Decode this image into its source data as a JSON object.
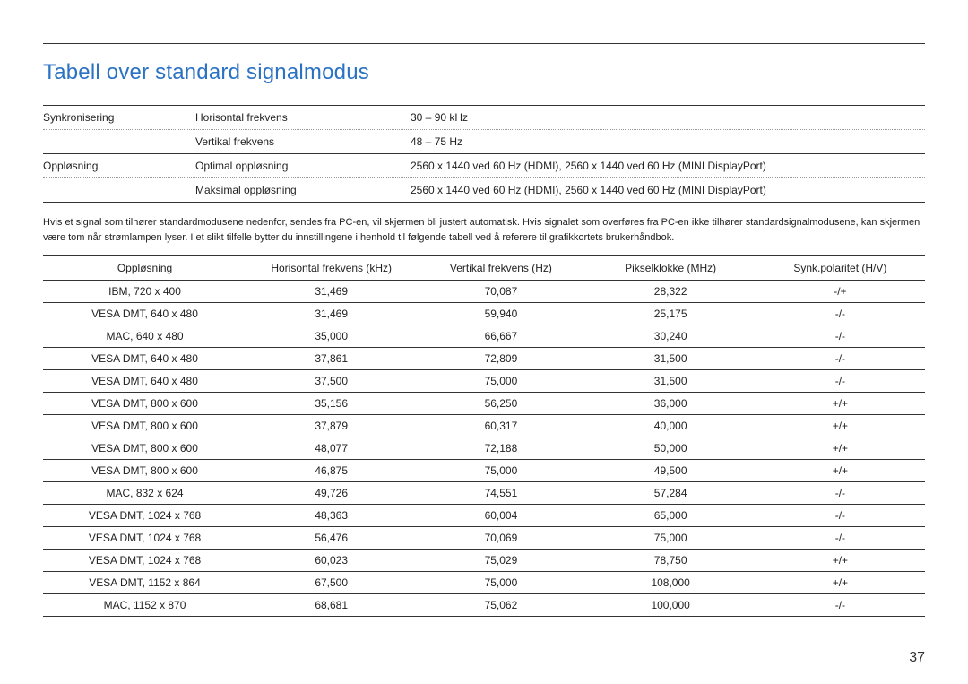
{
  "title": {
    "text": "Tabell over standard signalmodus",
    "color": "#2a72c4"
  },
  "spec_table": {
    "rows": [
      {
        "category": "Synkronisering",
        "label": "Horisontal frekvens",
        "value": "30 – 90 kHz",
        "top_border": "none"
      },
      {
        "category": "",
        "label": "Vertikal frekvens",
        "value": "48 – 75 Hz",
        "top_border": "dotted"
      },
      {
        "category": "Oppløsning",
        "label": "Optimal oppløsning",
        "value": "2560 x 1440 ved 60 Hz (HDMI), 2560 x 1440 ved 60 Hz (MINI DisplayPort)",
        "top_border": "solid"
      },
      {
        "category": "",
        "label": "Maksimal oppløsning",
        "value": "2560 x 1440 ved 60 Hz (HDMI), 2560 x 1440 ved 60 Hz (MINI DisplayPort)",
        "top_border": "dotted"
      }
    ]
  },
  "body_paragraph": "Hvis et signal som tilhører standardmodusene nedenfor, sendes fra PC-en, vil skjermen bli justert automatisk. Hvis signalet som overføres fra PC-en ikke tilhører standardsignalmodusene, kan skjermen være tom når strømlampen lyser. I et slikt tilfelle bytter du innstillingene i henhold til følgende tabell ved å referere til grafikkortets brukerhåndbok.",
  "data_table": {
    "columns": [
      "Oppløsning",
      "Horisontal frekvens (kHz)",
      "Vertikal frekvens (Hz)",
      "Pikselklokke (MHz)",
      "Synk.polaritet (H/V)"
    ],
    "rows": [
      [
        "IBM, 720 x 400",
        "31,469",
        "70,087",
        "28,322",
        "-/+"
      ],
      [
        "VESA DMT, 640 x 480",
        "31,469",
        "59,940",
        "25,175",
        "-/-"
      ],
      [
        "MAC, 640 x 480",
        "35,000",
        "66,667",
        "30,240",
        "-/-"
      ],
      [
        "VESA DMT, 640 x 480",
        "37,861",
        "72,809",
        "31,500",
        "-/-"
      ],
      [
        "VESA DMT, 640 x 480",
        "37,500",
        "75,000",
        "31,500",
        "-/-"
      ],
      [
        "VESA DMT, 800 x 600",
        "35,156",
        "56,250",
        "36,000",
        "+/+"
      ],
      [
        "VESA DMT, 800 x 600",
        "37,879",
        "60,317",
        "40,000",
        "+/+"
      ],
      [
        "VESA DMT, 800 x 600",
        "48,077",
        "72,188",
        "50,000",
        "+/+"
      ],
      [
        "VESA DMT, 800 x 600",
        "46,875",
        "75,000",
        "49,500",
        "+/+"
      ],
      [
        "MAC, 832 x 624",
        "49,726",
        "74,551",
        "57,284",
        "-/-"
      ],
      [
        "VESA DMT, 1024 x 768",
        "48,363",
        "60,004",
        "65,000",
        "-/-"
      ],
      [
        "VESA DMT, 1024 x 768",
        "56,476",
        "70,069",
        "75,000",
        "-/-"
      ],
      [
        "VESA DMT, 1024 x 768",
        "60,023",
        "75,029",
        "78,750",
        "+/+"
      ],
      [
        "VESA DMT, 1152 x 864",
        "67,500",
        "75,000",
        "108,000",
        "+/+"
      ],
      [
        "MAC, 1152 x 870",
        "68,681",
        "75,062",
        "100,000",
        "-/-"
      ]
    ]
  },
  "page_number": "37"
}
